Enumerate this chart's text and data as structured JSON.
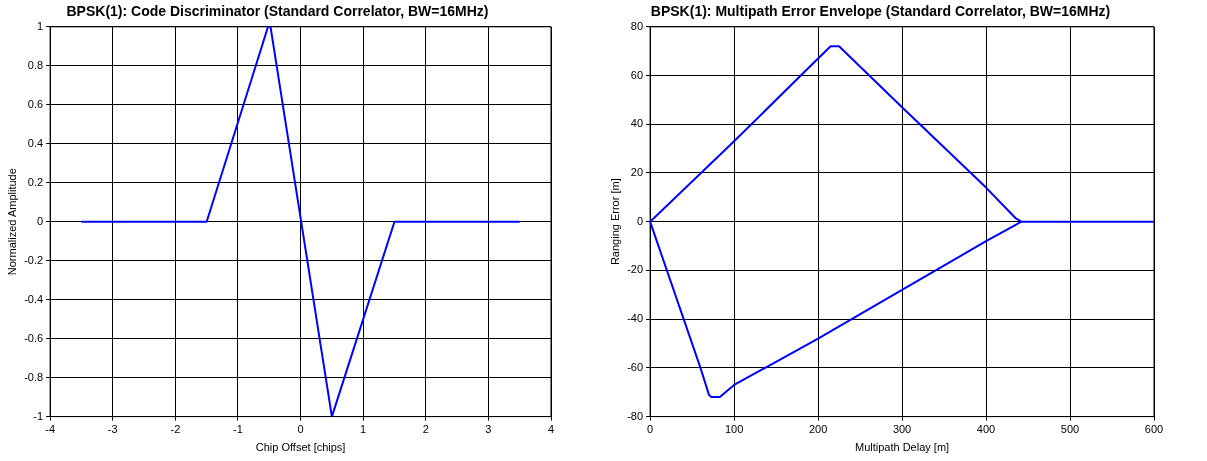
{
  "chart_data": [
    {
      "type": "line",
      "title": "BPSK(1): Code Discriminator (Standard Correlator, BW=16MHz)",
      "xlabel": "Chip Offset [chips]",
      "ylabel": "Normalized Amplitude",
      "series": [
        {
          "color": "#0000ff",
          "x": [
            -3.5,
            -1.5,
            -0.52,
            -0.48,
            0,
            0.5,
            1.5,
            3.5
          ],
          "values": [
            0,
            0,
            1,
            1,
            0.02,
            -1,
            0,
            0
          ]
        }
      ],
      "xlim": [
        -4,
        4
      ],
      "xticks": [
        -4,
        -3,
        -2,
        -1,
        0,
        1,
        2,
        3,
        4
      ],
      "ylim": [
        -1,
        1
      ],
      "yticks": [
        -1,
        -0.8,
        -0.6,
        -0.4,
        -0.2,
        0,
        0.2,
        0.4,
        0.6,
        0.8,
        1
      ],
      "grid": true,
      "legend": false,
      "marker": "none",
      "line_style": "solid"
    },
    {
      "type": "line",
      "title": "BPSK(1): Multipath Error Envelope (Standard Correlator, BW=16MHz)",
      "xlabel": "Multipath Delay [m]",
      "ylabel": "Ranging Error [m]",
      "series": [
        {
          "color": "#0000ff",
          "x": [
            0,
            100,
            200,
            215,
            225,
            300,
            400,
            435,
            442,
            600
          ],
          "values": [
            0,
            33,
            67,
            72,
            72,
            47,
            14,
            1.5,
            0,
            0
          ]
        },
        {
          "color": "#0000ff",
          "x": [
            0,
            60,
            70,
            73,
            83,
            100,
            200,
            300,
            400,
            442
          ],
          "values": [
            0,
            -60,
            -71,
            -72,
            -72,
            -67,
            -48,
            -28,
            -8,
            0
          ]
        }
      ],
      "xlim": [
        0,
        600
      ],
      "xticks": [
        0,
        100,
        200,
        300,
        400,
        500,
        600
      ],
      "ylim": [
        -80,
        80
      ],
      "yticks": [
        -80,
        -60,
        -40,
        -20,
        0,
        20,
        40,
        60,
        80
      ],
      "grid": true,
      "legend": false,
      "marker": "none",
      "line_style": "solid"
    }
  ]
}
